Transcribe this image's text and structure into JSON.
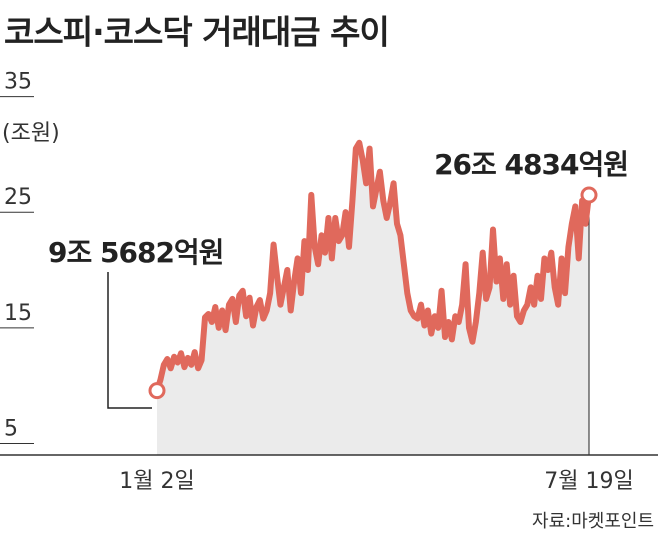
{
  "chart_data": {
    "type": "area",
    "title": "코스피·코스닥 거래대금 추이",
    "y_label": "(조원)",
    "source": "자료:마켓포인트",
    "annotations": [
      "9조 5682억원",
      "26조 4834억원"
    ],
    "color": "#e0695c",
    "fill": "#ebebeb",
    "ylim": [
      4,
      36
    ],
    "yticks": [
      5,
      15,
      25,
      35
    ],
    "categories": [
      "1월 2일",
      null,
      null,
      null,
      null,
      null,
      null,
      null,
      null,
      null,
      null,
      null,
      null,
      null,
      null,
      null,
      null,
      null,
      null,
      null,
      null,
      null,
      null,
      null,
      null,
      null,
      null,
      null,
      null,
      null,
      null,
      null,
      null,
      null,
      null,
      null,
      null,
      null,
      null,
      null,
      null,
      null,
      null,
      null,
      null,
      null,
      null,
      null,
      null,
      null,
      null,
      null,
      null,
      null,
      null,
      null,
      null,
      null,
      null,
      null,
      null,
      null,
      null,
      null,
      null,
      null,
      null,
      null,
      null,
      null,
      null,
      null,
      null,
      null,
      null,
      null,
      null,
      null,
      null,
      null,
      null,
      null,
      null,
      null,
      null,
      null,
      null,
      null,
      null,
      null,
      null,
      null,
      null,
      null,
      null,
      null,
      null,
      null,
      null,
      null,
      null,
      null,
      null,
      null,
      null,
      null,
      null,
      null,
      null,
      null,
      null,
      null,
      null,
      null,
      null,
      null,
      null,
      null,
      null,
      null,
      null,
      null,
      null,
      null,
      null,
      null,
      "7월 19일"
    ],
    "values": [
      9.5682,
      10.5,
      11.8,
      12.3,
      11.5,
      12.5,
      12.0,
      12.8,
      11.6,
      12.4,
      11.8,
      12.9,
      11.5,
      12.2,
      15.9,
      16.2,
      15.5,
      16.8,
      15.0,
      16.5,
      14.8,
      17.0,
      17.5,
      15.5,
      17.8,
      18.2,
      16.0,
      17.6,
      15.2,
      16.8,
      17.4,
      15.8,
      16.5,
      18.0,
      22.2,
      19.5,
      17.0,
      18.5,
      20.0,
      16.5,
      19.0,
      21.0,
      18.0,
      22.5,
      20.0,
      26.5,
      22.0,
      20.5,
      23.0,
      21.5,
      24.5,
      21.0,
      24.5,
      22.5,
      23.0,
      25.0,
      22.0,
      26.0,
      30.5,
      31.0,
      29.5,
      27.5,
      30.5,
      25.5,
      27.0,
      28.5,
      26.0,
      24.5,
      25.8,
      27.5,
      24.0,
      23.0,
      20.5,
      18.0,
      16.5,
      16.0,
      15.8,
      17.0,
      15.2,
      16.5,
      14.5,
      16.0,
      15.0,
      18.2,
      14.2,
      15.5,
      14.0,
      16.0,
      15.5,
      17.0,
      20.5,
      15.0,
      13.8,
      15.5,
      18.0,
      21.5,
      17.5,
      18.5,
      23.5,
      19.0,
      21.0,
      17.5,
      20.5,
      17.0,
      19.5,
      16.0,
      15.5,
      16.5,
      17.0,
      18.5,
      17.0,
      19.5,
      17.5,
      21.0,
      20.0,
      21.5,
      18.5,
      17.0,
      21.0,
      18.0,
      22.0,
      24.0,
      25.5,
      21.0,
      26.0,
      24.0,
      26.4834
    ]
  }
}
